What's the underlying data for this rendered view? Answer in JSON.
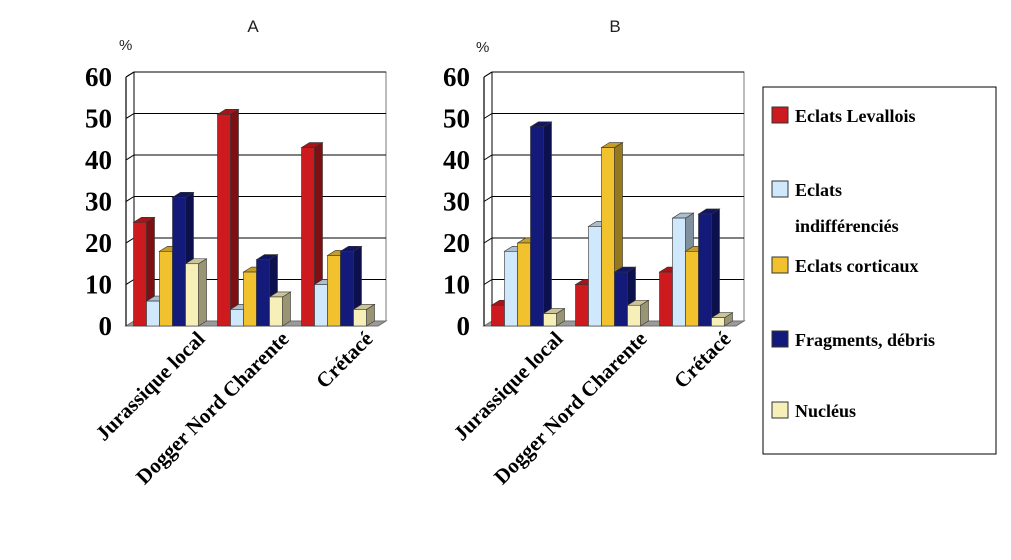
{
  "legend": [
    {
      "lines": [
        "Eclats Levallois"
      ],
      "color": "#cc1a1f"
    },
    {
      "lines": [
        "Eclats",
        "indifférenciés"
      ],
      "color": "#cfe8fb"
    },
    {
      "lines": [
        "Eclats corticaux"
      ],
      "color": "#f2c12e"
    },
    {
      "lines": [
        "Fragments, débris"
      ],
      "color": "#141a7a"
    },
    {
      "lines": [
        "Nucléus"
      ],
      "color": "#f7efb8"
    }
  ],
  "chart_data": [
    {
      "type": "bar",
      "title": "A",
      "ylabel": "%",
      "ylim": [
        0,
        60
      ],
      "yticks": [
        "0",
        "10",
        "20",
        "30",
        "40",
        "50",
        "60"
      ],
      "grid": true,
      "legend_position": "right",
      "categories": [
        "Jurassique local",
        "Dogger Nord Charente",
        "Crétacé"
      ],
      "series": [
        {
          "name": "Eclats Levallois",
          "values": [
            25,
            51,
            43
          ]
        },
        {
          "name": "Eclats indifférenciés",
          "values": [
            6,
            4,
            10
          ]
        },
        {
          "name": "Eclats corticaux",
          "values": [
            18,
            13,
            17
          ]
        },
        {
          "name": "Fragments, débris",
          "values": [
            31,
            16,
            18
          ]
        },
        {
          "name": "Nucléus",
          "values": [
            15,
            7,
            4
          ]
        }
      ]
    },
    {
      "type": "bar",
      "title": "B",
      "ylabel": "%",
      "ylim": [
        0,
        60
      ],
      "yticks": [
        "0",
        "10",
        "20",
        "30",
        "40",
        "50",
        "60"
      ],
      "grid": true,
      "legend_position": "right",
      "categories": [
        "Jurassique local",
        "Dogger Nord Charente",
        "Crétacé"
      ],
      "series": [
        {
          "name": "Eclats Levallois",
          "values": [
            5,
            10,
            13
          ]
        },
        {
          "name": "Eclats indifférenciés",
          "values": [
            18,
            24,
            26
          ]
        },
        {
          "name": "Eclats corticaux",
          "values": [
            20,
            43,
            18
          ]
        },
        {
          "name": "Fragments, débris",
          "values": [
            48,
            13,
            27
          ]
        },
        {
          "name": "Nucléus",
          "values": [
            3,
            5,
            2
          ]
        }
      ]
    }
  ]
}
